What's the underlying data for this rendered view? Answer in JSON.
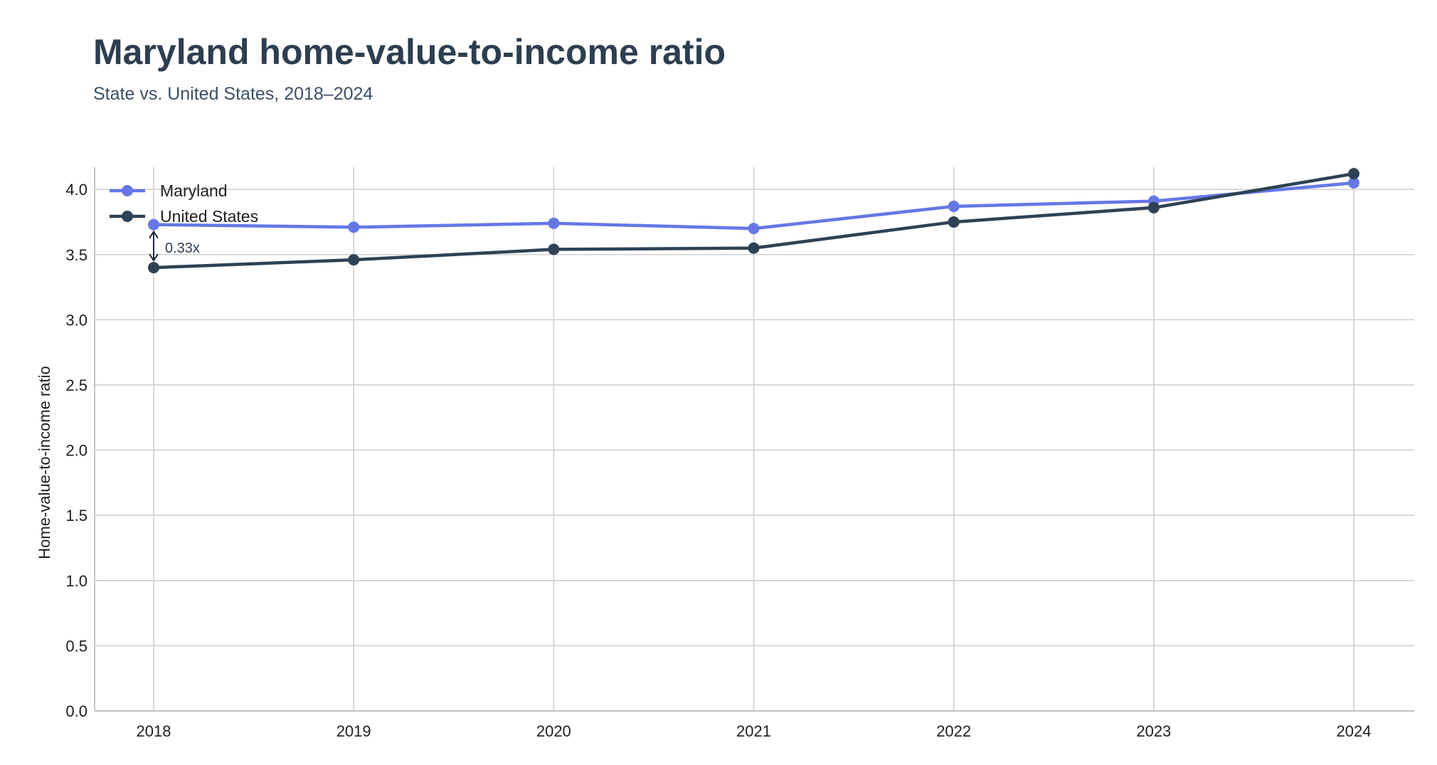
{
  "chart_data": {
    "type": "line",
    "title": "Maryland home-value-to-income ratio",
    "subtitle": "State vs. United States, 2018–2024",
    "ylabel": "Home-value-to-income ratio",
    "xlabel": "",
    "categories": [
      "2018",
      "2019",
      "2020",
      "2021",
      "2022",
      "2023",
      "2024"
    ],
    "ylim": [
      0,
      4.17
    ],
    "yticks": [
      "0.0",
      "0.5",
      "1.0",
      "1.5",
      "2.0",
      "2.5",
      "3.0",
      "3.5",
      "4.0"
    ],
    "series": [
      {
        "name": "Maryland",
        "color": "#6577e6",
        "values": [
          3.73,
          3.71,
          3.74,
          3.7,
          3.87,
          3.91,
          4.05
        ]
      },
      {
        "name": "United States",
        "color": "#2e4253",
        "values": [
          3.4,
          3.46,
          3.54,
          3.55,
          3.75,
          3.86,
          4.12
        ]
      }
    ],
    "annotation": {
      "text": "0.33x",
      "category": "2018"
    },
    "legend": "top-left",
    "grid": true
  }
}
